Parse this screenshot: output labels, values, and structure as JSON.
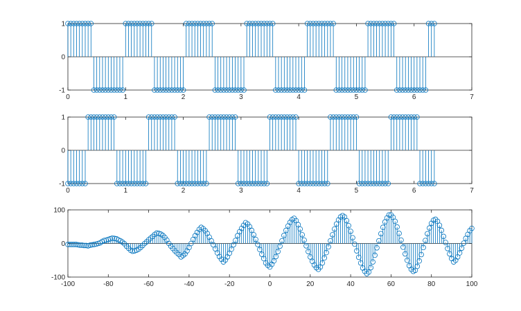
{
  "colors": {
    "stem": "#0072bd",
    "axis": "#262626",
    "background": "#ffffff"
  },
  "chart_data": [
    {
      "type": "stem",
      "xlim": [
        0,
        7
      ],
      "ylim": [
        -1,
        1
      ],
      "x_ticks": [
        "0",
        "1",
        "2",
        "3",
        "4",
        "5",
        "6",
        "7"
      ],
      "y_ticks": [
        "-1",
        "0",
        "1"
      ],
      "series": [
        {
          "x_start": 0,
          "x_step": 0.05,
          "x_end": 6.35,
          "values": [
            1,
            1,
            1,
            1,
            1,
            1,
            1,
            1,
            1,
            -1,
            -1,
            -1,
            -1,
            -1,
            -1,
            -1,
            -1,
            -1,
            -1,
            -1,
            1,
            1,
            1,
            1,
            1,
            1,
            1,
            1,
            1,
            1,
            -1,
            -1,
            -1,
            -1,
            -1,
            -1,
            -1,
            -1,
            -1,
            -1,
            -1,
            1,
            1,
            1,
            1,
            1,
            1,
            1,
            1,
            1,
            1,
            -1,
            -1,
            -1,
            -1,
            -1,
            -1,
            -1,
            -1,
            -1,
            -1,
            -1,
            1,
            1,
            1,
            1,
            1,
            1,
            1,
            1,
            1,
            1,
            -1,
            -1,
            -1,
            -1,
            -1,
            -1,
            -1,
            -1,
            -1,
            -1,
            -1,
            1,
            1,
            1,
            1,
            1,
            1,
            1,
            1,
            1,
            1,
            -1,
            -1,
            -1,
            -1,
            -1,
            -1,
            -1,
            -1,
            -1,
            -1,
            -1,
            1,
            1,
            1,
            1,
            1,
            1,
            1,
            1,
            1,
            1,
            -1,
            -1,
            -1,
            -1,
            -1,
            -1,
            -1,
            -1,
            -1,
            -1,
            -1,
            1,
            1,
            1,
            1,
            1,
            1
          ]
        }
      ]
    },
    {
      "type": "stem",
      "xlim": [
        0,
        7
      ],
      "ylim": [
        -1,
        1
      ],
      "x_ticks": [
        "0",
        "1",
        "2",
        "3",
        "4",
        "5",
        "6",
        "7"
      ],
      "y_ticks": [
        "-1",
        "0",
        "1"
      ],
      "series": [
        {
          "x_start": 0,
          "x_step": 0.05,
          "x_end": 6.35,
          "values": [
            -1,
            -1,
            -1,
            -1,
            -1,
            -1,
            -1,
            1,
            1,
            1,
            1,
            1,
            1,
            1,
            1,
            1,
            1,
            -1,
            -1,
            -1,
            -1,
            -1,
            -1,
            -1,
            -1,
            -1,
            -1,
            -1,
            1,
            1,
            1,
            1,
            1,
            1,
            1,
            1,
            1,
            1,
            -1,
            -1,
            -1,
            -1,
            -1,
            -1,
            -1,
            -1,
            -1,
            -1,
            -1,
            1,
            1,
            1,
            1,
            1,
            1,
            1,
            1,
            1,
            1,
            -1,
            -1,
            -1,
            -1,
            -1,
            -1,
            -1,
            -1,
            -1,
            -1,
            -1,
            1,
            1,
            1,
            1,
            1,
            1,
            1,
            1,
            1,
            1,
            -1,
            -1,
            -1,
            -1,
            -1,
            -1,
            -1,
            -1,
            -1,
            -1,
            -1,
            1,
            1,
            1,
            1,
            1,
            1,
            1,
            1,
            1,
            1,
            -1,
            -1,
            -1,
            -1,
            -1,
            -1,
            -1,
            -1,
            -1,
            -1,
            -1,
            1,
            1,
            1,
            1,
            1,
            1,
            1,
            1,
            1,
            1,
            -1,
            -1,
            -1,
            -1,
            -1,
            -1,
            -1,
            -1,
            -1,
            -1,
            -1
          ]
        }
      ]
    },
    {
      "type": "stem",
      "xlim": [
        -100,
        100
      ],
      "ylim": [
        -100,
        100
      ],
      "x_ticks": [
        "-100",
        "-80",
        "-60",
        "-40",
        "-20",
        "0",
        "20",
        "40",
        "60",
        "80",
        "100"
      ],
      "y_ticks": [
        "-100",
        "0",
        "100"
      ],
      "series": [
        {
          "x_start": -100,
          "x_step": 1,
          "x_end": 100,
          "values": [
            -3,
            -3,
            -3,
            -3,
            -3,
            -4,
            -5,
            -5,
            -6,
            -6,
            -7,
            -5,
            -4,
            -3,
            -2,
            0,
            2,
            6,
            9,
            10,
            12,
            14,
            16,
            15,
            14,
            11,
            8,
            4,
            -1,
            -8,
            -14,
            -20,
            -23,
            -22,
            -20,
            -17,
            -12,
            -6,
            0,
            5,
            11,
            16,
            21,
            27,
            31,
            30,
            28,
            24,
            18,
            10,
            0,
            -8,
            -15,
            -22,
            -28,
            -33,
            -40,
            -36,
            -31,
            -22,
            -12,
            0,
            12,
            23,
            33,
            42,
            48,
            44,
            38,
            30,
            19,
            8,
            -4,
            -16,
            -28,
            -39,
            -47,
            -55,
            -49,
            -40,
            -29,
            -17,
            -4,
            9,
            23,
            35,
            45,
            54,
            62,
            58,
            50,
            39,
            26,
            12,
            -3,
            -18,
            -32,
            -45,
            -58,
            -65,
            -70,
            -62,
            -52,
            -39,
            -24,
            -8,
            8,
            24,
            39,
            52,
            63,
            71,
            75,
            68,
            56,
            43,
            26,
            10,
            -7,
            -24,
            -40,
            -53,
            -64,
            -72,
            -77,
            -70,
            -58,
            -43,
            -27,
            -10,
            8,
            26,
            43,
            58,
            70,
            79,
            83,
            79,
            68,
            53,
            36,
            17,
            -2,
            -22,
            -41,
            -58,
            -73,
            -83,
            -90,
            -85,
            -72,
            -55,
            -35,
            -13,
            8,
            29,
            48,
            64,
            76,
            85,
            85,
            78,
            66,
            49,
            30,
            10,
            -11,
            -31,
            -50,
            -66,
            -77,
            -83,
            -80,
            -68,
            -52,
            -33,
            -12,
            9,
            29,
            46,
            60,
            69,
            72,
            66,
            54,
            39,
            21,
            3,
            -15,
            -31,
            -45,
            -55,
            -50,
            -40,
            -28,
            -14,
            1,
            15,
            27,
            38,
            45,
            50,
            44,
            36,
            25
          ]
        }
      ]
    }
  ]
}
